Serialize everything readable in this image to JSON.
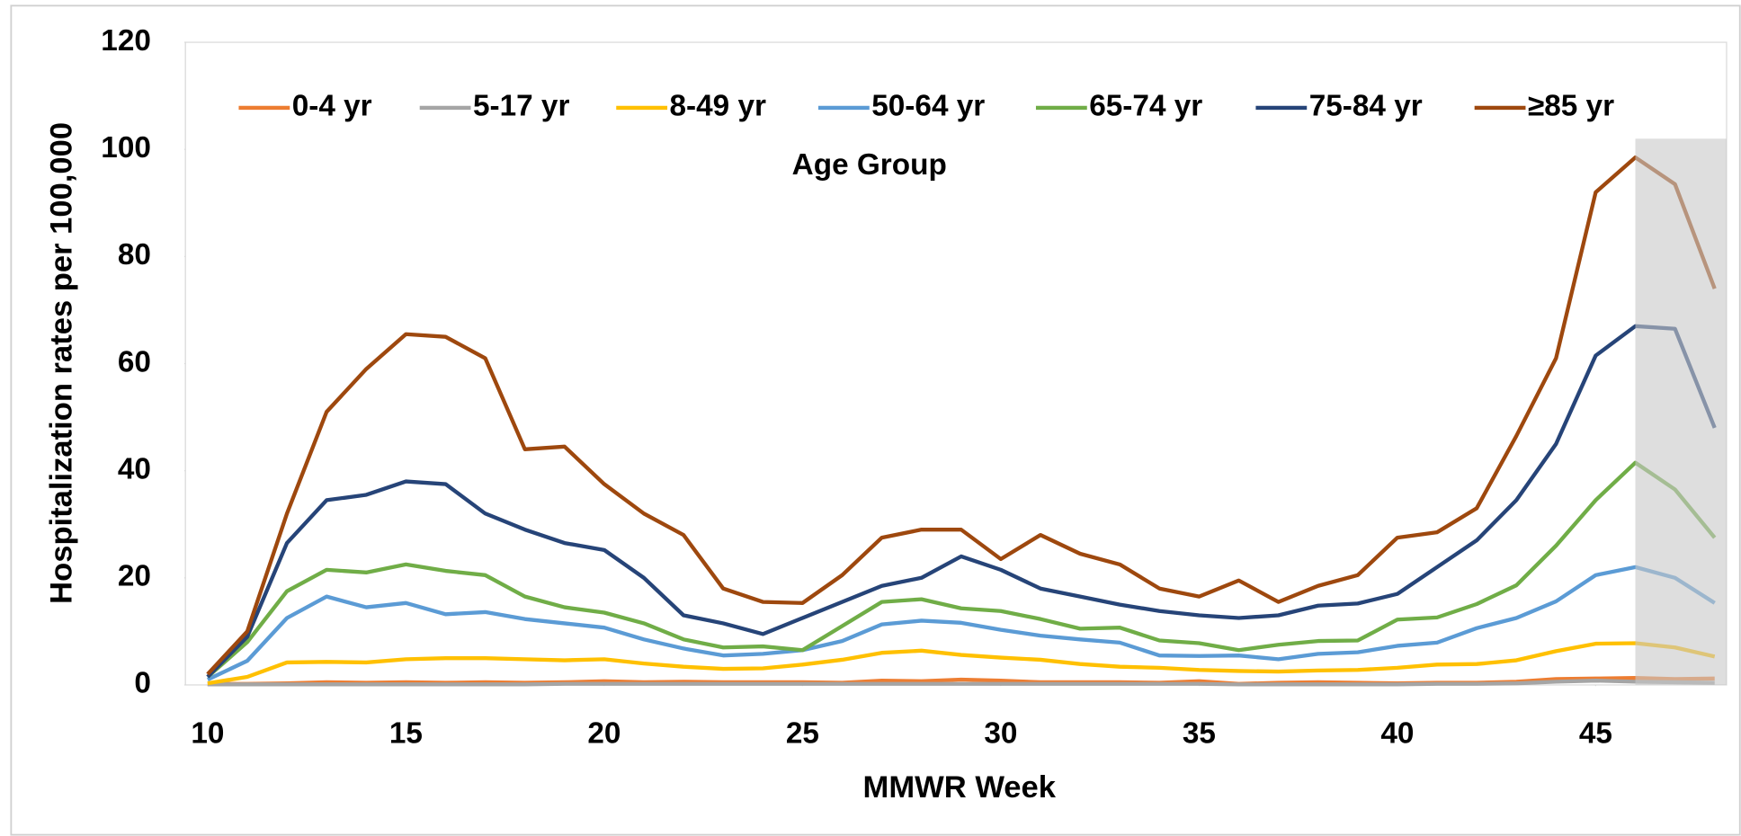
{
  "chart_data": {
    "type": "line",
    "x_label": "MMWR Week",
    "y_label": "Hospitalization rates per 100,000",
    "legend_title": "Age Group",
    "legend": "top",
    "x": [
      10,
      11,
      12,
      13,
      14,
      15,
      16,
      17,
      18,
      19,
      20,
      21,
      22,
      23,
      24,
      25,
      26,
      27,
      28,
      29,
      30,
      31,
      32,
      33,
      34,
      35,
      36,
      37,
      38,
      39,
      40,
      41,
      42,
      43,
      44,
      45,
      46,
      47,
      48
    ],
    "xlim": [
      9.44,
      48.3
    ],
    "xticks": [
      10,
      15,
      20,
      25,
      30,
      35,
      40,
      45
    ],
    "ylim": [
      0,
      120
    ],
    "yticks": [
      0,
      20,
      40,
      60,
      80,
      100,
      120
    ],
    "shaded_region": [
      46,
      48.3
    ],
    "series": [
      {
        "name": "0-4 yr",
        "color": "#ED7D31",
        "values": [
          0.2,
          0.2,
          0.3,
          0.5,
          0.4,
          0.5,
          0.4,
          0.5,
          0.4,
          0.5,
          0.7,
          0.5,
          0.6,
          0.5,
          0.5,
          0.5,
          0.4,
          0.8,
          0.7,
          1,
          0.8,
          0.5,
          0.5,
          0.5,
          0.4,
          0.7,
          0.2,
          0.4,
          0.5,
          0.4,
          0.3,
          0.4,
          0.4,
          0.6,
          1.1,
          1.2,
          1.3,
          1.1,
          1.2
        ]
      },
      {
        "name": "5-17 yr",
        "color": "#A5A5A5",
        "values": [
          0.1,
          0.1,
          0.1,
          0.1,
          0.1,
          0.1,
          0.1,
          0.1,
          0.1,
          0.2,
          0.2,
          0.2,
          0.2,
          0.2,
          0.2,
          0.2,
          0.2,
          0.2,
          0.2,
          0.2,
          0.2,
          0.2,
          0.2,
          0.2,
          0.2,
          0.2,
          0.1,
          0.1,
          0.1,
          0.1,
          0.1,
          0.2,
          0.2,
          0.3,
          0.6,
          0.8,
          0.6,
          0.5,
          0.4
        ]
      },
      {
        "name": "8-49 yr",
        "color": "#FFC000",
        "values": [
          0.3,
          1.5,
          4.2,
          4.3,
          4.2,
          4.8,
          5,
          5,
          4.8,
          4.6,
          4.8,
          4,
          3.4,
          3,
          3.1,
          3.8,
          4.7,
          6,
          6.4,
          5.6,
          5.1,
          4.7,
          3.9,
          3.4,
          3.2,
          2.8,
          2.6,
          2.5,
          2.7,
          2.8,
          3.2,
          3.8,
          3.9,
          4.6,
          6.3,
          7.7,
          7.8,
          7,
          5.3
        ]
      },
      {
        "name": "50-64 yr",
        "color": "#5B9BD5",
        "values": [
          1,
          4.5,
          12.5,
          16.5,
          14.5,
          15.3,
          13.2,
          13.6,
          12.3,
          11.5,
          10.7,
          8.5,
          6.8,
          5.5,
          5.8,
          6.5,
          8.2,
          11.3,
          12,
          11.6,
          10.3,
          9.2,
          8.5,
          7.9,
          5.5,
          5.4,
          5.5,
          4.8,
          5.8,
          6.1,
          7.3,
          7.9,
          10.6,
          12.5,
          15.6,
          20.5,
          22,
          20,
          15.3
        ]
      },
      {
        "name": "65-74 yr",
        "color": "#70AD47",
        "values": [
          1.5,
          8,
          17.5,
          21.5,
          21,
          22.5,
          21.3,
          20.5,
          16.5,
          14.5,
          13.5,
          11.5,
          8.5,
          7,
          7.2,
          6.5,
          11,
          15.5,
          16,
          14.3,
          13.8,
          12.3,
          10.5,
          10.7,
          8.3,
          7.8,
          6.5,
          7.5,
          8.2,
          8.3,
          12.2,
          12.6,
          15.1,
          18.6,
          26,
          34.5,
          41.5,
          36.5,
          27.5
        ]
      },
      {
        "name": "75-84 yr",
        "color": "#264478",
        "values": [
          1.5,
          9,
          26.5,
          34.5,
          35.5,
          38,
          37.5,
          32,
          29,
          26.5,
          25.2,
          20,
          13,
          11.5,
          9.5,
          12.5,
          15.5,
          18.5,
          20,
          24,
          21.5,
          18,
          16.5,
          15,
          13.8,
          13,
          12.5,
          13,
          14.8,
          15.2,
          17,
          22,
          27,
          34.5,
          45,
          61.5,
          67,
          66.5,
          48
        ]
      },
      {
        "name": "≥85 yr",
        "color": "#9E480E",
        "values": [
          2,
          10,
          32,
          51,
          59,
          65.5,
          65,
          61,
          44,
          44.5,
          37.5,
          32,
          28,
          18,
          15.5,
          15.3,
          20.5,
          27.5,
          29,
          29,
          23.5,
          28,
          24.5,
          22.5,
          18,
          16.5,
          19.5,
          15.5,
          18.5,
          20.5,
          27.5,
          28.5,
          33,
          46.5,
          61,
          92,
          98.5,
          93.5,
          74
        ]
      }
    ]
  }
}
